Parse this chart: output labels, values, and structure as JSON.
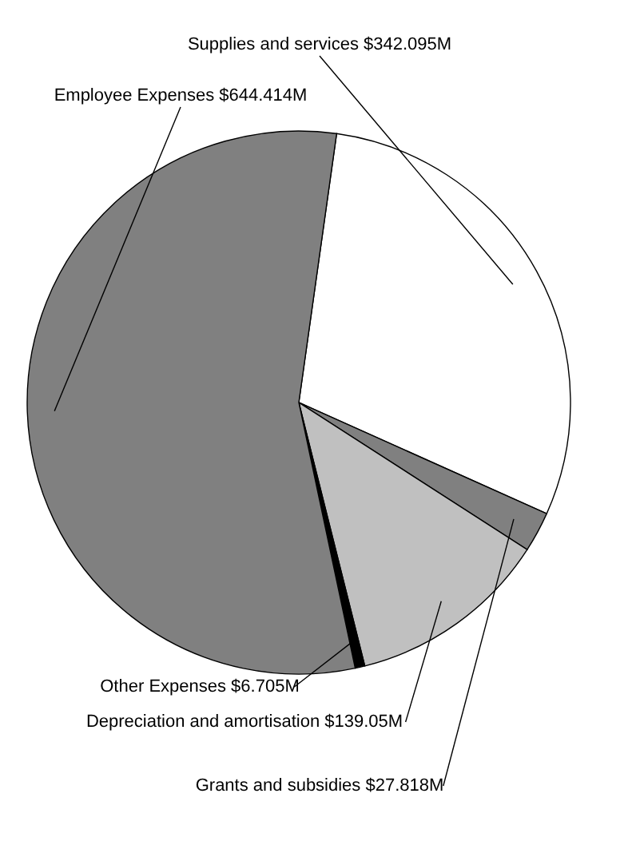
{
  "chart_data": {
    "type": "pie",
    "categories": [
      "Supplies and services",
      "Grants and subsidies",
      "Depreciation and amortisation",
      "Other Expenses",
      "Employee Expenses"
    ],
    "values": [
      342.095,
      27.818,
      139.05,
      6.705,
      644.414
    ],
    "value_labels": [
      "$342.095M",
      "$27.818M",
      "$139.05M",
      "$6.705M",
      "$644.414M"
    ],
    "colors": [
      "#ffffff",
      "#808080",
      "#c0c0c0",
      "#000000",
      "#808080"
    ]
  }
}
